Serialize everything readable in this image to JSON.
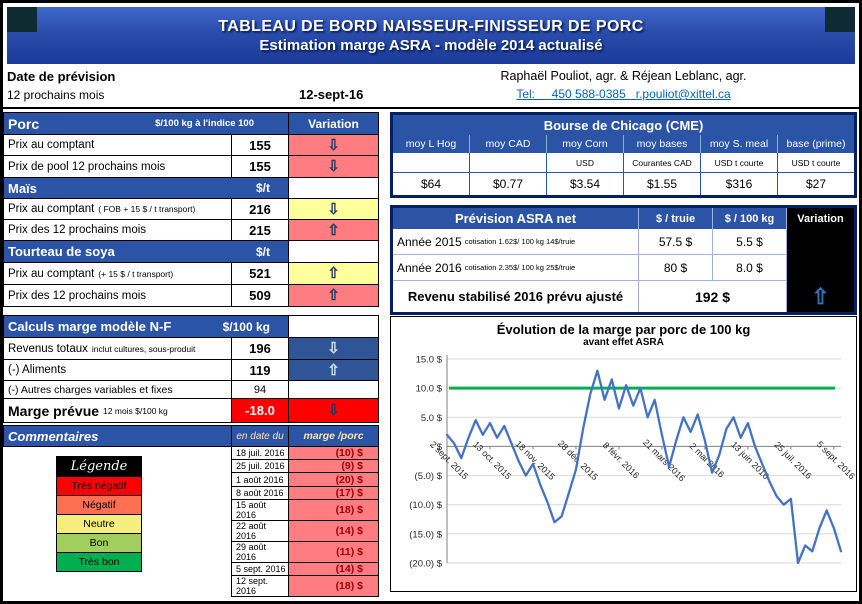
{
  "banner": {
    "title1": "TABLEAU DE BORD NAISSEUR-FINISSEUR DE PORC",
    "title2": "Estimation marge ASRA - modèle 2014 actualisé"
  },
  "forecast": {
    "label": "Date de prévision",
    "period": "12 prochains mois",
    "date": "12-sept-16"
  },
  "contact": {
    "authors": "Raphaël Pouliot, agr.   &   Réjean Leblanc, agr.",
    "tel_label": "Tel:",
    "phone": "450 588-0385",
    "email": "r.pouliot@xittel.ca"
  },
  "porc": {
    "title": "Porc",
    "unit": "$/100 kg à l'indice 100",
    "variation": "Variation",
    "rows": [
      {
        "label": "Prix au comptant",
        "note": "",
        "value": "155",
        "arrow": "⇩"
      },
      {
        "label": "Prix de pool 12 prochains mois",
        "note": "",
        "value": "155",
        "arrow": "⇩"
      }
    ]
  },
  "mais": {
    "title": "Maïs",
    "unit": "$/t",
    "rows": [
      {
        "label": "Prix au comptant",
        "note": "( FOB + 15 $ / t transport)",
        "value": "216",
        "arrow": "⇩"
      },
      {
        "label": "Prix des 12 prochains mois",
        "note": "",
        "value": "215",
        "arrow": "⇧"
      }
    ]
  },
  "soya": {
    "title": "Tourteau de soya",
    "unit": "$/t",
    "rows": [
      {
        "label": "Prix au comptant",
        "note": "(+ 15 $ / t  transport)",
        "value": "521",
        "arrow": "⇧"
      },
      {
        "label": "Prix des 12 prochains mois",
        "note": "",
        "value": "509",
        "arrow": "⇧"
      }
    ]
  },
  "calculs": {
    "title": "Calculs marge  modèle N-F",
    "unit": "$/100 kg",
    "rows": [
      {
        "label": "Revenus totaux",
        "note": "inclut cultures, sous-produit",
        "value": "196",
        "arrow": "⇩"
      },
      {
        "label": "(-) Aliments",
        "note": "",
        "value": "119",
        "arrow": "⇧"
      },
      {
        "label": "(-) Autres charges variables et fixes",
        "note": "",
        "value": "94",
        "arrow": ""
      },
      {
        "label": "Marge prévue",
        "note": "12 mois $/100 kg",
        "value": "-18.0",
        "arrow": "⇩"
      }
    ]
  },
  "commentaires": {
    "title": "Commentaires",
    "col_date": "en date du",
    "col_marge": "marge /porc"
  },
  "legend": {
    "title": "Légende",
    "items": [
      {
        "label": "Très négatif",
        "color": "#FF0000"
      },
      {
        "label": "Négatif",
        "color": "#FF7052"
      },
      {
        "label": "Neutre",
        "color": "#F6EE7C"
      },
      {
        "label": "Bon",
        "color": "#A2CE5F"
      },
      {
        "label": "Très bon",
        "color": "#00B050"
      }
    ]
  },
  "history": {
    "rows": [
      {
        "date": "18 juil. 2016",
        "value": "(10) $"
      },
      {
        "date": "25 juil. 2016",
        "value": "(9) $"
      },
      {
        "date": "1 août 2016",
        "value": "(20) $"
      },
      {
        "date": "8 août 2016",
        "value": "(17) $"
      },
      {
        "date": "15 août 2016",
        "value": "(18) $"
      },
      {
        "date": "22 août 2016",
        "value": "(14) $"
      },
      {
        "date": "29 août 2016",
        "value": "(11) $"
      },
      {
        "date": "5 sept. 2016",
        "value": "(14) $"
      },
      {
        "date": "12 sept. 2016",
        "value": "(18) $"
      }
    ]
  },
  "cme": {
    "title": "Bourse de Chicago (CME)",
    "columns": [
      {
        "name": "moy L Hog",
        "unit": "",
        "value": "$64"
      },
      {
        "name": "moy CAD",
        "unit": "",
        "value": "$0.77"
      },
      {
        "name": "moy Corn",
        "unit": "USD",
        "value": "$3.54"
      },
      {
        "name": "moy bases",
        "unit": "Courantes CAD",
        "value": "$1.55"
      },
      {
        "name": "moy S. meal",
        "unit": "USD t courte",
        "value": "$316"
      },
      {
        "name": "base (prime)",
        "unit": "USD t courte",
        "value": "$27"
      }
    ]
  },
  "asra": {
    "title": "Prévision ASRA net",
    "col_truie": "$ / truie",
    "col_kg": "$ / 100 kg",
    "col_var": "Variation",
    "rows": [
      {
        "label": "Année 2015",
        "note": "cotisation 1.62$/ 100 kg  14$/truie",
        "truie": "57.5  $",
        "kg": "5.5  $"
      },
      {
        "label": "Année 2016",
        "note": "cotisation 2.35$/ 100 kg  25$/truie",
        "truie": "80  $",
        "kg": "8.0  $"
      }
    ],
    "footer_label": "Revenu stabilisé 2016 prévu ajusté",
    "footer_value": "192  $",
    "arrow": "⇧"
  },
  "chart_data": {
    "type": "line",
    "title": "Évolution de la marge par porc de 100 kg",
    "subtitle": "avant effet ASRA",
    "ylim": [
      -20,
      15
    ],
    "grid": true,
    "legend_position": "none",
    "y_tick_values": [
      15,
      10,
      5,
      0,
      -5,
      -10,
      -15,
      -20
    ],
    "y_tick_labels": [
      "15.0 $",
      "10.0 $",
      "5.0 $",
      "-  $",
      "(5.0) $",
      "(10.0) $",
      "(15.0) $",
      "(20.0) $"
    ],
    "x_tick_every": 6,
    "x_tick_labels": [
      "2 sept. 2015",
      "13 oct. 2015",
      "18 nov. 2015",
      "28 déc. 2015",
      "8 févr. 2016",
      "21 mars 2016",
      "2 mai 2016",
      "13 juin 2016",
      "25 juil. 2016",
      "5 sept. 2016"
    ],
    "reference_line": {
      "value": 10,
      "color": "#00B050"
    },
    "series": [
      {
        "name": "Marge par porc avant effet ASRA ($/porc)",
        "color": "#4472C4",
        "values": [
          2,
          0.5,
          -2,
          1.5,
          4.5,
          2,
          4,
          1.5,
          3.5,
          0.5,
          -2.5,
          -5,
          -3,
          -6.5,
          -9.5,
          -13,
          -12,
          -8,
          -4,
          3,
          9,
          13,
          8,
          11.5,
          6.5,
          10.5,
          7,
          10,
          5,
          8,
          2,
          -3.5,
          1,
          5,
          2.5,
          5.5,
          1,
          -4.5,
          -1.5,
          3,
          5,
          1.5,
          4,
          0,
          -3,
          -6,
          -8.5,
          -10,
          -9,
          -20,
          -17,
          -18,
          -14,
          -11,
          -14,
          -18
        ]
      }
    ]
  }
}
